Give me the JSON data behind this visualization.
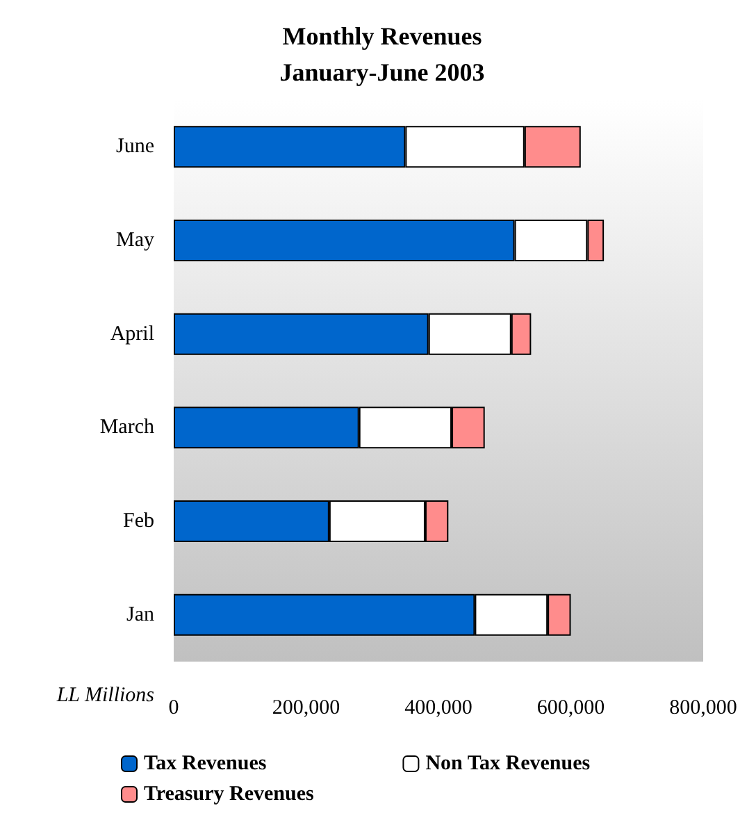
{
  "chart_data": {
    "type": "bar",
    "title": "Monthly Revenues\nJanuary-June 2003",
    "xlabel": "LL Millions",
    "orientation": "horizontal",
    "stacked": true,
    "categories": [
      "June",
      "May",
      "April",
      "March",
      "Feb",
      "Jan"
    ],
    "series": [
      {
        "name": "Tax Revenues",
        "color": "#0066cc",
        "values": [
          350000,
          515000,
          385000,
          280000,
          235000,
          455000
        ]
      },
      {
        "name": "Non Tax Revenues",
        "color": "#ffffff",
        "values": [
          180000,
          110000,
          125000,
          140000,
          145000,
          110000
        ]
      },
      {
        "name": "Treasury Revenues",
        "color": "#ff8c8c",
        "values": [
          85000,
          25000,
          30000,
          50000,
          35000,
          35000
        ]
      }
    ],
    "xlim": [
      0,
      800000
    ],
    "xticks": [
      0,
      {
        "value": 200000,
        "label": "200,000"
      },
      {
        "value": 400000,
        "label": "400,000"
      },
      {
        "value": 600000,
        "label": "600,000"
      },
      {
        "value": 800000,
        "label": "800,000"
      }
    ],
    "grid": false,
    "legend": "bottom"
  }
}
